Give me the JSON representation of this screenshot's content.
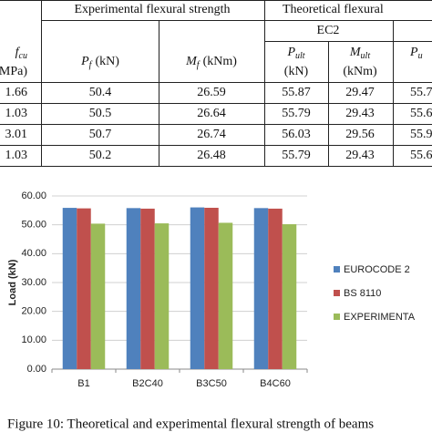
{
  "table": {
    "group_headers": [
      "Experimental flexural strength",
      "Theoretical flexural"
    ],
    "subgroup": "EC2",
    "columns": [
      {
        "symbol": "f",
        "subscript": "cu",
        "unit": "MPa)"
      },
      {
        "symbol": "P",
        "subscript": "f",
        "unit": "(kN)"
      },
      {
        "symbol": "M",
        "subscript": "f",
        "unit": "(kNm)"
      },
      {
        "symbol": "P",
        "subscript": "ult",
        "unit": "(kN)"
      },
      {
        "symbol": "M",
        "subscript": "ult",
        "unit": "(kNm)"
      },
      {
        "symbol": "P",
        "subscript": "u"
      }
    ],
    "rows": [
      [
        "1.66",
        "50.4",
        "26.59",
        "55.87",
        "29.47",
        "55.7"
      ],
      [
        "1.03",
        "50.5",
        "26.64",
        "55.79",
        "29.43",
        "55.6"
      ],
      [
        "3.01",
        "50.7",
        "26.74",
        "56.03",
        "29.56",
        "55.9"
      ],
      [
        "1.03",
        "50.2",
        "26.48",
        "55.79",
        "29.43",
        "55.6"
      ]
    ]
  },
  "chart_data": {
    "type": "bar",
    "y_label": "Load (kN)",
    "categories": [
      "B1",
      "B2C40",
      "B3C50",
      "B4C60"
    ],
    "series": [
      {
        "name": "EUROCODE 2",
        "color": "#4f81bd",
        "values": [
          55.87,
          55.79,
          56.03,
          55.79
        ]
      },
      {
        "name": "BS 8110",
        "color": "#c0504d",
        "values": [
          55.7,
          55.6,
          55.9,
          55.6
        ]
      },
      {
        "name": "EXPERIMENTA",
        "color": "#9bbb59",
        "values": [
          50.4,
          50.5,
          50.7,
          50.2
        ]
      }
    ],
    "ylim": [
      0,
      60
    ],
    "yticks": [
      {
        "value": 0,
        "label": "0.00"
      },
      {
        "value": 10,
        "label": "10.00"
      },
      {
        "value": 20,
        "label": "20.00"
      },
      {
        "value": 30,
        "label": "30.00"
      },
      {
        "value": 40,
        "label": "40.00"
      },
      {
        "value": 50,
        "label": "50.00"
      },
      {
        "value": 60,
        "label": "60.00"
      }
    ],
    "grid": true,
    "legend": "right"
  },
  "caption": "Figure 10: Theoretical and experimental flexural strength of beams"
}
